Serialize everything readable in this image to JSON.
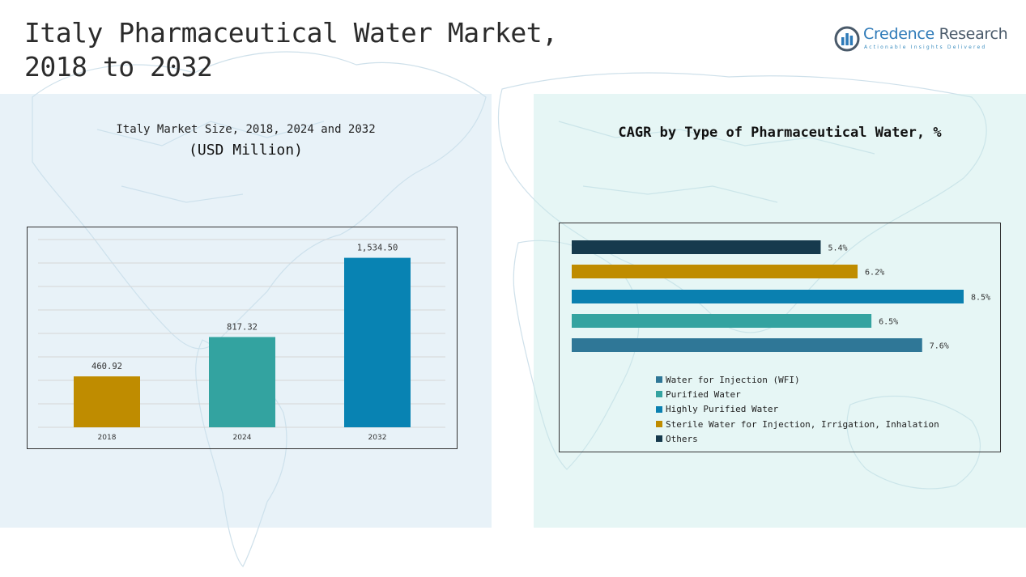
{
  "header": {
    "title_line1": "Italy Pharmaceutical Water Market,",
    "title_line2": "2018 to 2032"
  },
  "logo": {
    "name_part1": "Credence",
    "name_part2": "Research",
    "tagline": "Actionable Insights Delivered",
    "icon": "bar-chart-circle-icon",
    "color": "#2e7ab8"
  },
  "chart_data": [
    {
      "type": "bar",
      "title": "Italy Market Size, 2018, 2024 and 2032",
      "subtitle": "(USD Million)",
      "categories": [
        "2018",
        "2024",
        "2032"
      ],
      "values": [
        460.92,
        817.32,
        1534.5
      ],
      "labels": [
        "460.92",
        "817.32",
        "1,534.50"
      ],
      "colors": [
        "#bf8c00",
        "#33a3a0",
        "#0883b3"
      ],
      "ylim": [
        0,
        1700
      ],
      "grid": true
    },
    {
      "type": "bar",
      "orientation": "horizontal",
      "title": "CAGR by Type of Pharmaceutical Water, %",
      "series": [
        {
          "name": "Water for Injection (WFI)",
          "value": 7.6,
          "label": "7.6%",
          "color": "#2f7797"
        },
        {
          "name": "Purified Water",
          "value": 6.5,
          "label": "6.5%",
          "color": "#34a3a0"
        },
        {
          "name": "Highly Purified Water",
          "value": 8.5,
          "label": "8.5%",
          "color": "#0a80b0"
        },
        {
          "name": "Sterile Water for Injection, Irrigation, Inhalation",
          "value": 6.2,
          "label": "6.2%",
          "color": "#bf8c00"
        },
        {
          "name": "Others",
          "value": 5.4,
          "label": "5.4%",
          "color": "#163a4d"
        }
      ],
      "bar_order_top_to_bottom": [
        "Others",
        "Sterile Water for Injection, Irrigation, Inhalation",
        "Highly Purified Water",
        "Purified Water",
        "Water for Injection (WFI)"
      ],
      "xlim": [
        0,
        8.5
      ],
      "legend_position": "bottom"
    }
  ]
}
